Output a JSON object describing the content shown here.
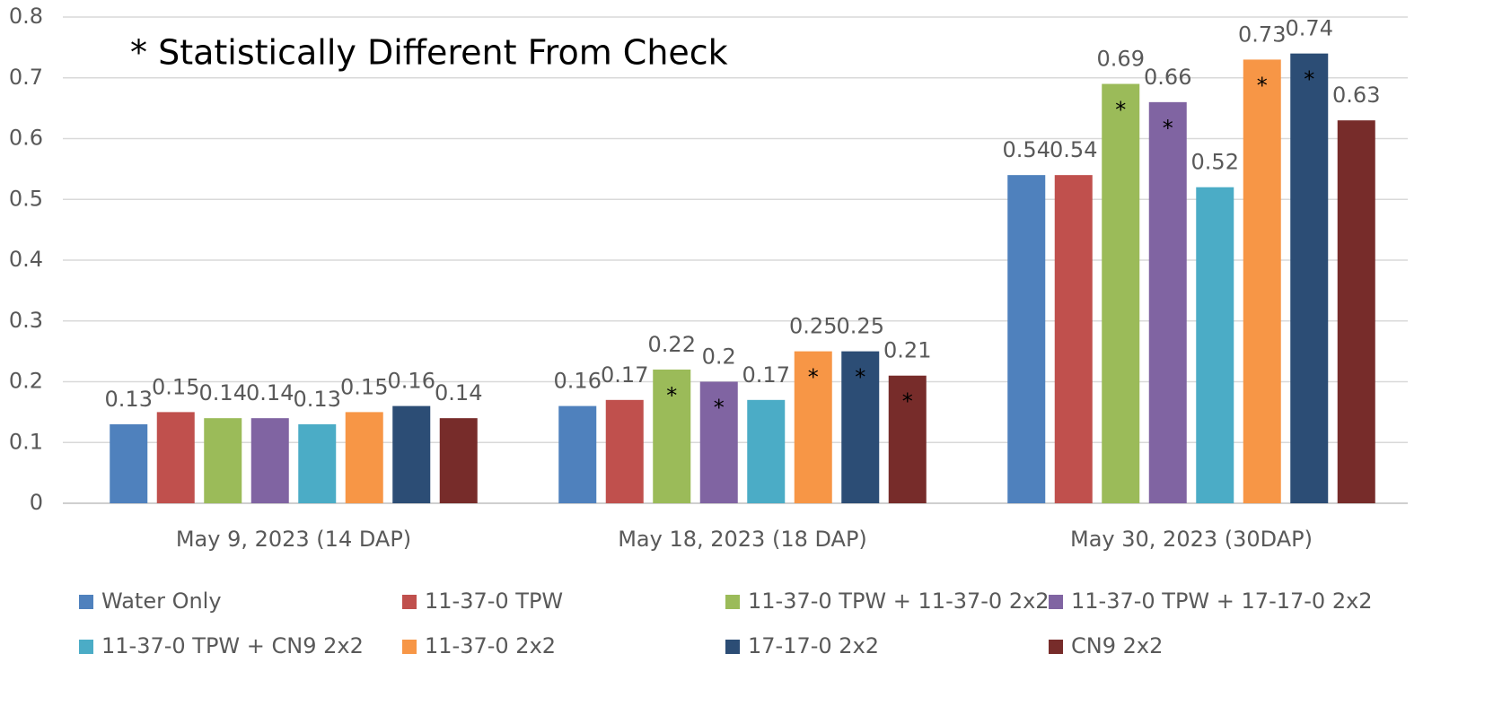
{
  "chart_data": {
    "type": "bar",
    "annotations": [
      "* Statistically Different From Check"
    ],
    "categories": [
      "May 9, 2023 (14 DAP)",
      "May 18, 2023 (18 DAP)",
      "May 30, 2023 (30DAP)"
    ],
    "series": [
      {
        "name": "Water Only",
        "color": "#4f81bd",
        "values": [
          0.13,
          0.16,
          0.54
        ],
        "markers": [
          null,
          null,
          null
        ]
      },
      {
        "name": "11-37-0 TPW",
        "color": "#c0504d",
        "values": [
          0.15,
          0.17,
          0.54
        ],
        "markers": [
          null,
          null,
          null
        ]
      },
      {
        "name": "11-37-0 TPW + 11-37-0 2x2",
        "color": "#9bbb59",
        "values": [
          0.14,
          0.22,
          0.69
        ],
        "markers": [
          null,
          "*",
          "*"
        ]
      },
      {
        "name": "11-37-0 TPW + 17-17-0 2x2",
        "color": "#8064a2",
        "values": [
          0.14,
          0.2,
          0.66
        ],
        "markers": [
          null,
          "*",
          "*"
        ]
      },
      {
        "name": "11-37-0 TPW + CN9 2x2",
        "color": "#4bacc6",
        "values": [
          0.13,
          0.17,
          0.52
        ],
        "markers": [
          null,
          null,
          null
        ]
      },
      {
        "name": "11-37-0 2x2",
        "color": "#f79646",
        "values": [
          0.15,
          0.25,
          0.73
        ],
        "markers": [
          null,
          "*",
          "*"
        ]
      },
      {
        "name": "17-17-0 2x2",
        "color": "#2c4d75",
        "values": [
          0.16,
          0.25,
          0.74
        ],
        "markers": [
          null,
          "*",
          "*"
        ]
      },
      {
        "name": "CN9 2x2",
        "color": "#772c2a",
        "values": [
          0.14,
          0.21,
          0.63
        ],
        "markers": [
          null,
          "*",
          null
        ]
      }
    ],
    "ylim": [
      0,
      0.8
    ],
    "yticks": [
      0,
      0.1,
      0.2,
      0.3,
      0.4,
      0.5,
      0.6,
      0.7,
      0.8
    ],
    "grid": true,
    "legend": "bottom"
  }
}
